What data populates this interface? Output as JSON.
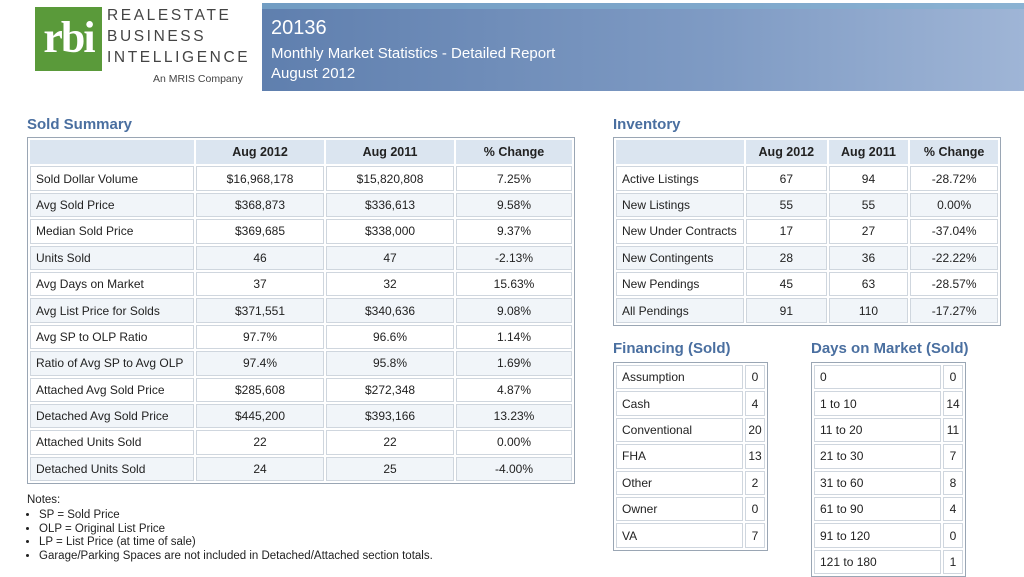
{
  "brand": {
    "mark": "rbi",
    "line1": "REALESTATE",
    "line2": "BUSINESS",
    "line3": "INTELLIGENCE",
    "sub": "An MRIS Company"
  },
  "header": {
    "zip": "20136",
    "title": "Monthly Market Statistics - Detailed Report",
    "period": "August 2012"
  },
  "sold_summary": {
    "title": "Sold Summary",
    "columns": [
      "",
      "Aug 2012",
      "Aug 2011",
      "% Change"
    ],
    "rows": [
      [
        "Sold Dollar Volume",
        "$16,968,178",
        "$15,820,808",
        "7.25%"
      ],
      [
        "Avg Sold Price",
        "$368,873",
        "$336,613",
        "9.58%"
      ],
      [
        "Median Sold Price",
        "$369,685",
        "$338,000",
        "9.37%"
      ],
      [
        "Units Sold",
        "46",
        "47",
        "-2.13%"
      ],
      [
        "Avg Days on Market",
        "37",
        "32",
        "15.63%"
      ],
      [
        "Avg List Price for Solds",
        "$371,551",
        "$340,636",
        "9.08%"
      ],
      [
        "Avg SP to OLP Ratio",
        "97.7%",
        "96.6%",
        "1.14%"
      ],
      [
        "Ratio of Avg SP to Avg OLP",
        "97.4%",
        "95.8%",
        "1.69%"
      ],
      [
        "Attached Avg Sold Price",
        "$285,608",
        "$272,348",
        "4.87%"
      ],
      [
        "Detached Avg Sold Price",
        "$445,200",
        "$393,166",
        "13.23%"
      ],
      [
        "Attached Units Sold",
        "22",
        "22",
        "0.00%"
      ],
      [
        "Detached Units Sold",
        "24",
        "25",
        "-4.00%"
      ]
    ]
  },
  "inventory": {
    "title": "Inventory",
    "columns": [
      "",
      "Aug 2012",
      "Aug 2011",
      "% Change"
    ],
    "rows": [
      [
        "Active Listings",
        "67",
        "94",
        "-28.72%"
      ],
      [
        "New Listings",
        "55",
        "55",
        "0.00%"
      ],
      [
        "New Under Contracts",
        "17",
        "27",
        "-37.04%"
      ],
      [
        "New Contingents",
        "28",
        "36",
        "-22.22%"
      ],
      [
        "New Pendings",
        "45",
        "63",
        "-28.57%"
      ],
      [
        "All Pendings",
        "91",
        "110",
        "-17.27%"
      ]
    ]
  },
  "financing": {
    "title": "Financing (Sold)",
    "rows": [
      [
        "Assumption",
        "0"
      ],
      [
        "Cash",
        "4"
      ],
      [
        "Conventional",
        "20"
      ],
      [
        "FHA",
        "13"
      ],
      [
        "Other",
        "2"
      ],
      [
        "Owner",
        "0"
      ],
      [
        "VA",
        "7"
      ]
    ]
  },
  "days_on_market": {
    "title": "Days on Market (Sold)",
    "rows": [
      [
        "0",
        "0"
      ],
      [
        "1 to 10",
        "14"
      ],
      [
        "11 to 20",
        "11"
      ],
      [
        "21 to 30",
        "7"
      ],
      [
        "31 to 60",
        "8"
      ],
      [
        "61 to 90",
        "4"
      ],
      [
        "91 to 120",
        "0"
      ],
      [
        "121 to 180",
        "1"
      ]
    ]
  },
  "notes": {
    "title": "Notes:",
    "items": [
      "SP = Sold Price",
      "OLP = Original List Price",
      "LP = List Price (at time of sale)",
      "Garage/Parking Spaces are not included in Detached/Attached section totals."
    ]
  }
}
